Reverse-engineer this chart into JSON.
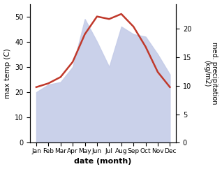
{
  "months": [
    "Jan",
    "Feb",
    "Mar",
    "Apr",
    "May",
    "Jun",
    "Jul",
    "Aug",
    "Sep",
    "Oct",
    "Nov",
    "Dec"
  ],
  "temp_max": [
    22,
    23.5,
    26,
    32,
    43,
    50,
    49,
    51,
    46,
    38,
    28,
    22
  ],
  "precip_area": [
    20,
    23,
    24,
    30,
    49,
    40,
    30,
    46,
    43,
    42,
    35,
    27
  ],
  "temp_color": "#c0392b",
  "precip_fill_color": "#c5cce8",
  "xlabel": "date (month)",
  "ylabel_left": "max temp (C)",
  "ylabel_right": "med. precipitation\n(kg/m2)",
  "ylim_left": [
    0,
    55
  ],
  "ylim_right": [
    0,
    24.4
  ],
  "yticks_left": [
    0,
    10,
    20,
    30,
    40,
    50
  ],
  "yticks_right": [
    0,
    5,
    10,
    15,
    20
  ],
  "background_color": "#ffffff"
}
